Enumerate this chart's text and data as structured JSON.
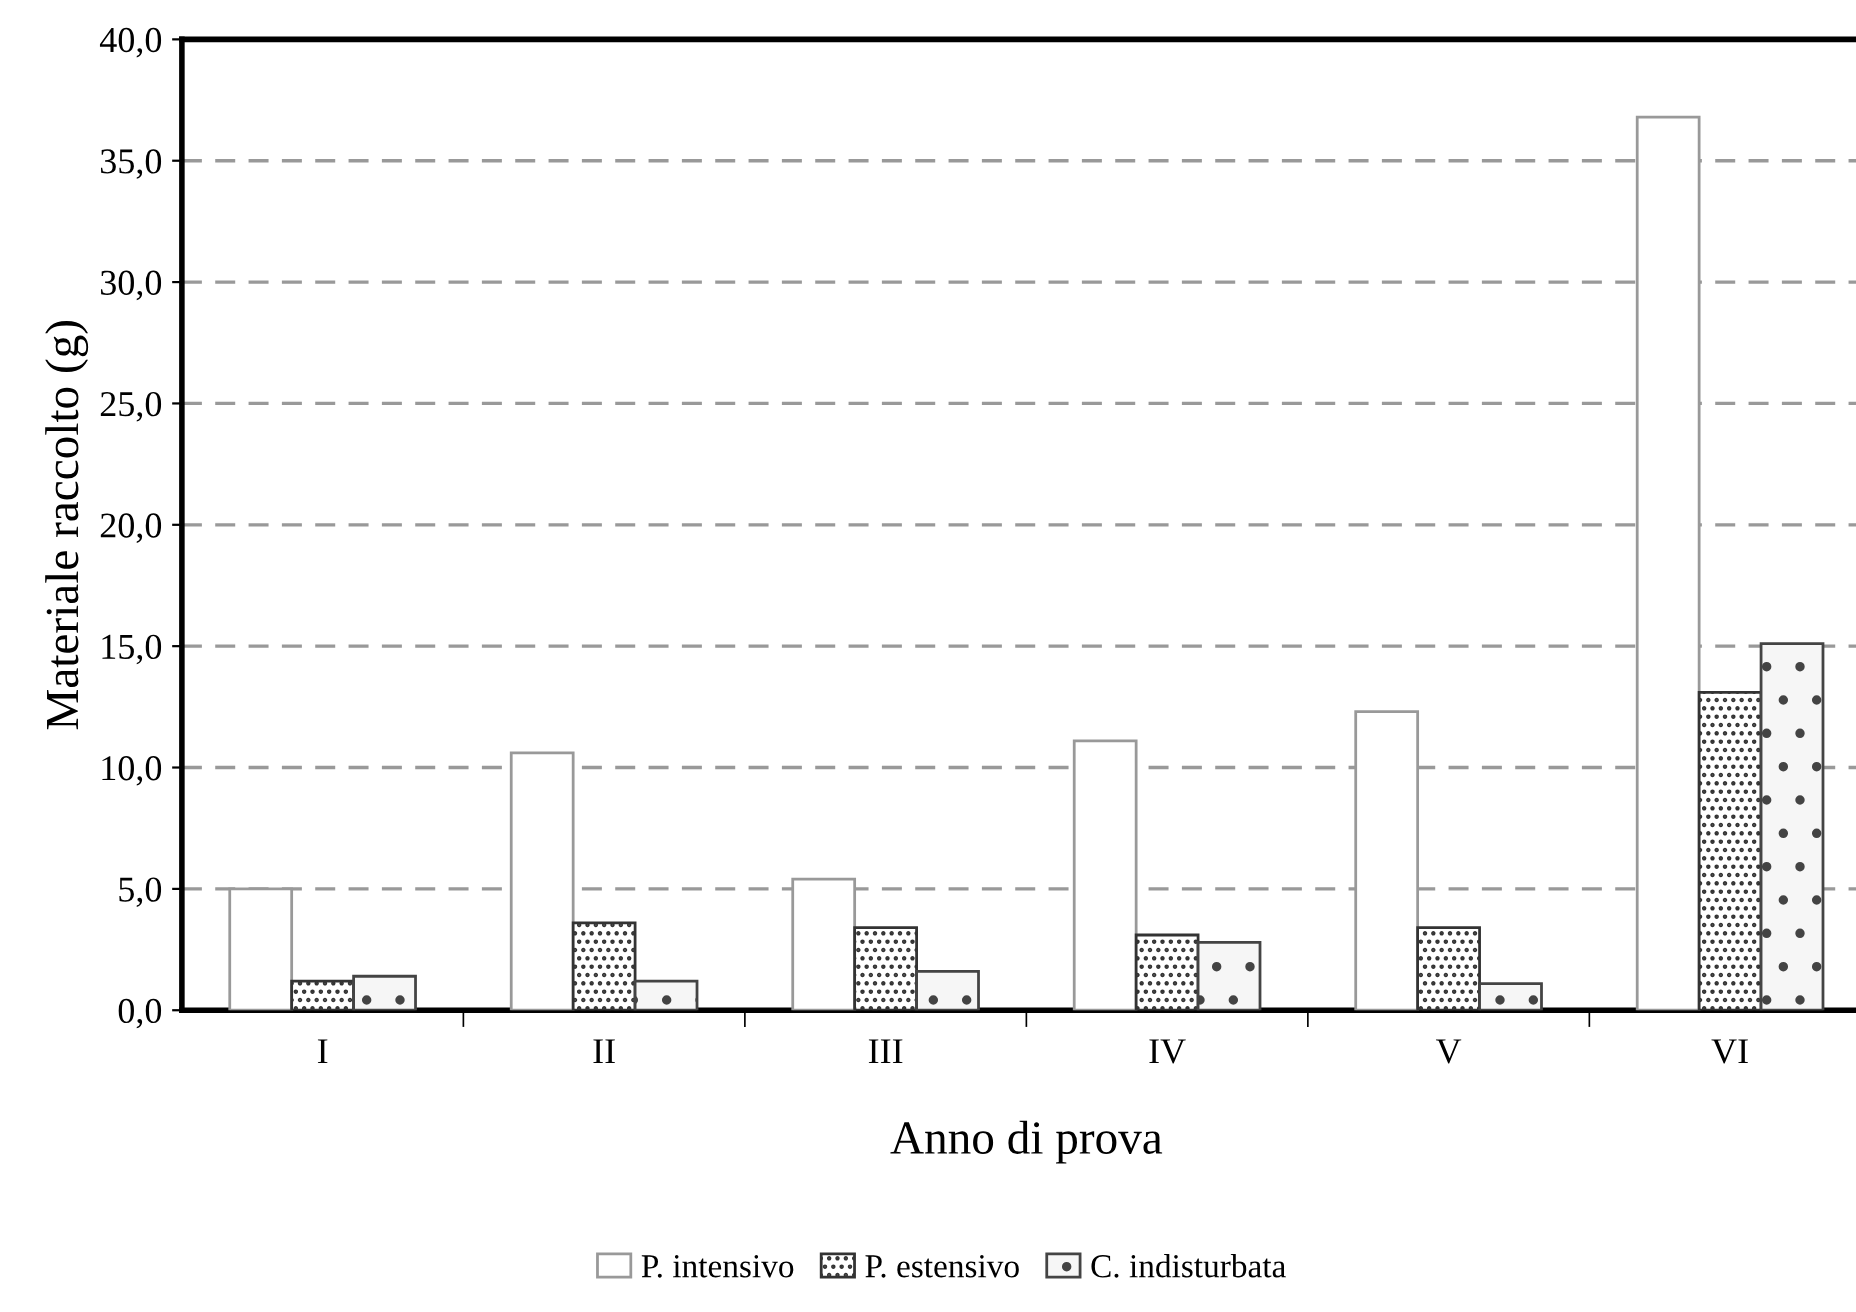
{
  "chart_data": {
    "type": "bar",
    "xlabel": "Anno di prova",
    "ylabel": "Materiale raccolto (g)",
    "categories": [
      "I",
      "II",
      "III",
      "IV",
      "V",
      "VI"
    ],
    "series": [
      {
        "name": "P. intensivo",
        "color": "#ffffff",
        "values": [
          5.0,
          10.6,
          5.4,
          11.1,
          12.3,
          36.8
        ]
      },
      {
        "name": "P. estensivo",
        "color": "#333333",
        "values": [
          1.2,
          3.6,
          3.4,
          3.1,
          3.4,
          13.1
        ]
      },
      {
        "name": "C. indisturbata",
        "color": "#444444",
        "values": [
          1.4,
          1.2,
          1.6,
          2.8,
          1.1,
          15.1
        ]
      }
    ],
    "ylim": [
      0,
      40
    ],
    "yticks": [
      {
        "value": 0,
        "label": "0,0"
      },
      {
        "value": 5,
        "label": "5,0"
      },
      {
        "value": 10,
        "label": "10,0"
      },
      {
        "value": 15,
        "label": "15,0"
      },
      {
        "value": 20,
        "label": "20,0"
      },
      {
        "value": 25,
        "label": "25,0"
      },
      {
        "value": 30,
        "label": "30,0"
      },
      {
        "value": 35,
        "label": "35,0"
      },
      {
        "value": 40,
        "label": "40,0"
      }
    ],
    "grid": "y",
    "legend": "bottom"
  }
}
